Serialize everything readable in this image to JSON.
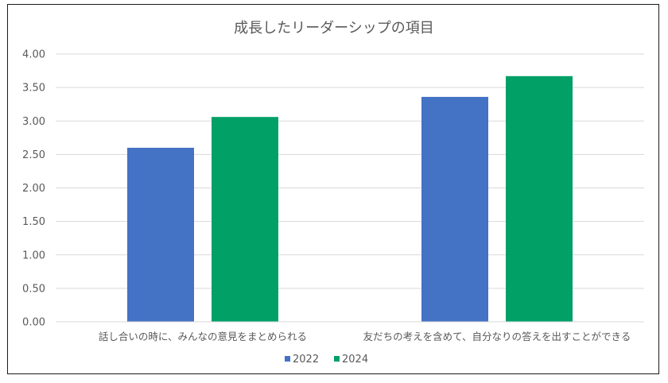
{
  "chart_data": {
    "type": "bar",
    "title": "成長したリーダーシップの項目",
    "categories": [
      "話し合いの時に、みんなの意見をまとめられる",
      "友だちの考えを含めて、自分なりの答えを出すことができる"
    ],
    "series": [
      {
        "name": "2022",
        "values": [
          2.6,
          3.36
        ],
        "color": "#4472C4"
      },
      {
        "name": "2024",
        "values": [
          3.06,
          3.67
        ],
        "color": "#00A067"
      }
    ],
    "ylim": [
      0,
      4
    ],
    "yticks": [
      "0.00",
      "0.50",
      "1.00",
      "1.50",
      "2.00",
      "2.50",
      "3.00",
      "3.50",
      "4.00"
    ],
    "ytick_step": 0.5,
    "xlabel": "",
    "ylabel": "",
    "grid": true,
    "gridline_color": "#D9D9D9",
    "legend_position": "bottom"
  }
}
